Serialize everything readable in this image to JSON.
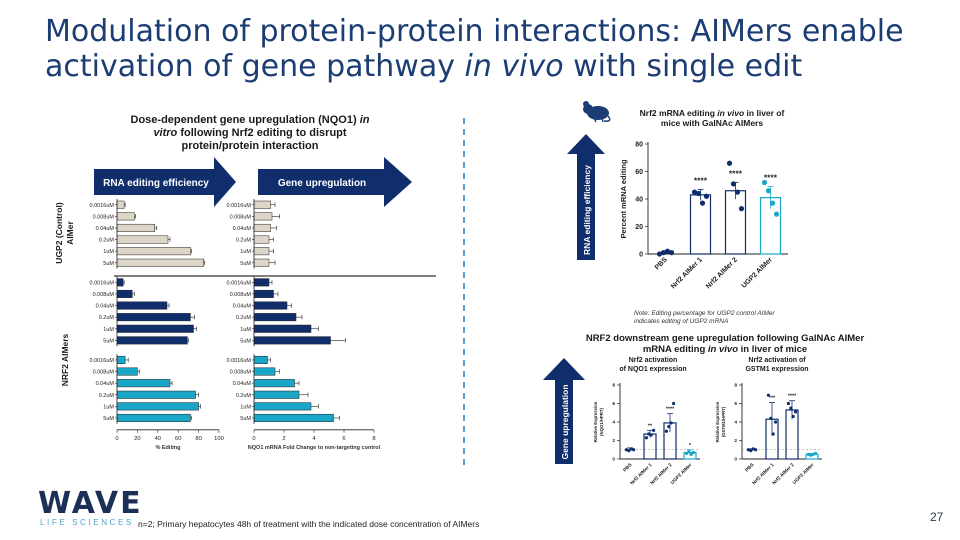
{
  "slide": {
    "title_line1": "Modulation of protein-protein interactions: AIMers enable",
    "title_line2_a": "activation of gene pathway ",
    "title_line2_b": "in vivo",
    "title_line2_c": " with single edit",
    "footnote": "n=2; Primary hepatocytes 48h of treatment with the indicated dose concentration of AIMers",
    "page_number": "27",
    "logo": {
      "word": "WAVE",
      "sub": "LIFE SCIENCES"
    },
    "colors": {
      "navy": "#1c3d73",
      "dark_blue": "#0f2e6b",
      "teal": "#1aa7c7",
      "beige": "#ddd6c8",
      "divider": "#2c7fc0"
    }
  },
  "left_panel": {
    "title_line1": "Dose-dependent gene upregulation (NQO1) ",
    "title_line1_italic": "in",
    "title_line2_italic": "vitro",
    "title_line2_rest": " following Nrf2 editing to disrupt",
    "title_line3": "protein/protein interaction",
    "arrow_left_label": "RNA editing efficiency",
    "arrow_right_label": "Gene upregulation",
    "group_label_ugp2_line1": "UGP2 (Control)",
    "group_label_ugp2_line2": "AIMer",
    "group_label_nrf2": "NRF2 AIMers"
  },
  "right_top": {
    "title_line1_a": "Nrf2 mRNA editing ",
    "title_line1_i": "in vivo",
    "title_line1_b": " in liver of",
    "title_line2": "mice with GalNAc AIMers",
    "arrow_label": "RNA editing efficiency",
    "note_line1": "Note: Editing percentage for UGP2 control AIMer",
    "note_line2": "indicates editing of UGP2 mRNA",
    "mouse_icon": "mouse-icon"
  },
  "right_bottom": {
    "title_line1": "NRF2 downstream gene upregulation following GalNAc AIMer",
    "title_line2_a": "mRNA editing ",
    "title_line2_i": "in vivo",
    "title_line2_b": " in liver of mice",
    "arrow_label": "Gene upregulation",
    "sub_left_line1": "Nrf2 activation",
    "sub_left_line2": "of NQO1 expression",
    "sub_right_line1": "Nrf2 activation of",
    "sub_right_line2": "GSTM1 expression"
  },
  "chart_data": [
    {
      "type": "bar",
      "orientation": "horizontal",
      "xlabel": "% Editing",
      "xlim": [
        0,
        100
      ],
      "xticks": [
        0,
        20,
        40,
        60,
        80,
        100
      ],
      "categories": [
        "0.0016uM",
        "0.008uM",
        "0.04uM",
        "0.2uM",
        "1uM",
        "5uM"
      ],
      "series": [
        {
          "values": [
            7,
            17,
            37,
            50,
            72,
            85
          ],
          "errors": [
            1,
            1,
            2,
            2,
            1,
            1
          ],
          "color": "#ddd6c8"
        },
        {
          "values": [
            6,
            15,
            49,
            72,
            75,
            69
          ],
          "errors": [
            1,
            2,
            2,
            4,
            3,
            1
          ],
          "color": "#0f2e6b"
        },
        {
          "values": [
            8,
            20,
            52,
            77,
            80,
            72
          ],
          "errors": [
            3,
            2,
            2,
            3,
            2,
            1
          ],
          "color": "#1aa7c7"
        }
      ]
    },
    {
      "type": "bar",
      "orientation": "horizontal",
      "xlabel": "NQO1 mRNA Fold Change to non-targeting control",
      "xlim": [
        0,
        8
      ],
      "xticks": [
        0,
        2,
        4,
        6,
        8
      ],
      "categories": [
        "0.0016uM",
        "0.008uM",
        "0.04uM",
        "0.2uM",
        "1uM",
        "5uM"
      ],
      "series": [
        {
          "values": [
            1.1,
            1.2,
            1.1,
            1.0,
            1.0,
            1.0
          ],
          "errors": [
            0.3,
            0.5,
            0.4,
            0.3,
            0.3,
            0.4
          ],
          "color": "#ddd6c8"
        },
        {
          "values": [
            1.0,
            1.3,
            2.2,
            2.8,
            3.8,
            5.1
          ],
          "errors": [
            0.2,
            0.3,
            0.3,
            0.4,
            0.5,
            1.0
          ],
          "color": "#0f2e6b"
        },
        {
          "values": [
            0.9,
            1.4,
            2.7,
            3.0,
            3.8,
            5.3
          ],
          "errors": [
            0.2,
            0.3,
            0.3,
            0.6,
            0.5,
            0.4
          ],
          "color": "#1aa7c7"
        }
      ]
    },
    {
      "type": "bar",
      "ylabel": "Percent mRNA editing",
      "ylim": [
        0,
        80
      ],
      "yticks": [
        0,
        20,
        40,
        60,
        80
      ],
      "categories": [
        "PBS",
        "Nrf2 AIMer 1",
        "Nrf2 AIMer 2",
        "UGP2 AIMer"
      ],
      "values": [
        1,
        43,
        46,
        41
      ],
      "errors": [
        1,
        4,
        6,
        8
      ],
      "points": [
        [
          0,
          1,
          2,
          1
        ],
        [
          45,
          44,
          37,
          42
        ],
        [
          66,
          51,
          45,
          33
        ],
        [
          52,
          46,
          37,
          29
        ]
      ],
      "colors": [
        "#0f2e6b",
        "#0f2e6b",
        "#0f2e6b",
        "#1aa7c7"
      ],
      "significance": [
        "",
        "****",
        "****",
        "****"
      ]
    },
    {
      "type": "bar",
      "ylabel_line1": "Relative Expression",
      "ylabel_line2": "(NQO1/HPRT)",
      "ylim": [
        0,
        8
      ],
      "yticks": [
        0,
        2,
        4,
        6,
        8
      ],
      "categories": [
        "PBS",
        "Nrf2 AIMer 1",
        "Nrf2 AIMer 2",
        "UGP2 AIMer"
      ],
      "values": [
        1.0,
        2.7,
        3.9,
        0.7
      ],
      "errors": [
        0.2,
        0.4,
        1.0,
        0.3
      ],
      "points": [
        [
          1.0,
          0.9,
          1.1,
          1.0
        ],
        [
          2.3,
          2.7,
          2.6,
          3.1
        ],
        [
          3.0,
          3.5,
          3.9,
          6.0
        ],
        [
          0.6,
          0.8,
          0.5,
          0.7
        ]
      ],
      "colors": [
        "#0f2e6b",
        "#0f2e6b",
        "#0f2e6b",
        "#1aa7c7"
      ],
      "significance": [
        "",
        "**",
        "****",
        "*"
      ]
    },
    {
      "type": "bar",
      "ylabel_line1": "Relative Expression",
      "ylabel_line2": "(GSTM1/HPRT)",
      "ylim": [
        0,
        8
      ],
      "yticks": [
        0,
        2,
        4,
        6,
        8
      ],
      "categories": [
        "PBS",
        "Nrf2 AIMer 1",
        "Nrf2 AIMer 2",
        "UGP2 AIMer"
      ],
      "values": [
        1.0,
        4.3,
        5.3,
        0.5
      ],
      "errors": [
        0.1,
        1.8,
        1.0,
        0.1
      ],
      "points": [
        [
          1.0,
          0.9,
          1.1,
          1.0
        ],
        [
          6.9,
          4.4,
          2.7,
          4.0
        ],
        [
          6.0,
          5.5,
          4.6,
          5.1
        ],
        [
          0.5,
          0.4,
          0.5,
          0.6
        ]
      ],
      "colors": [
        "#0f2e6b",
        "#0f2e6b",
        "#0f2e6b",
        "#1aa7c7"
      ],
      "significance": [
        "",
        "***",
        "****",
        ""
      ]
    }
  ]
}
